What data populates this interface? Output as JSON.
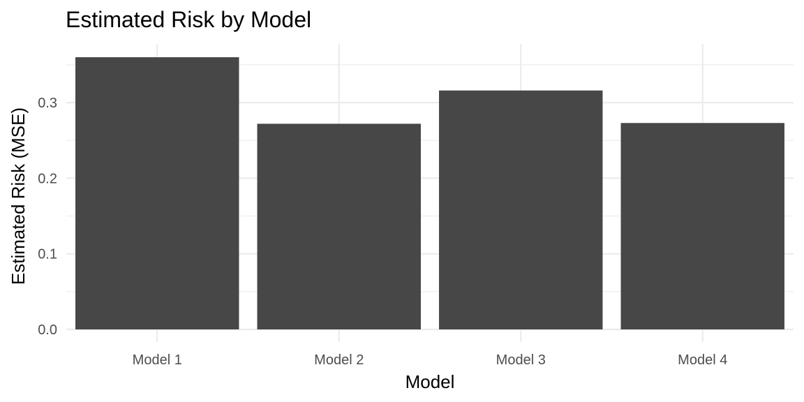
{
  "chart_data": {
    "type": "bar",
    "title": "Estimated Risk by Model",
    "xlabel": "Model",
    "ylabel": "Estimated Risk (MSE)",
    "categories": [
      "Model 1",
      "Model 2",
      "Model 3",
      "Model 4"
    ],
    "values": [
      0.36,
      0.272,
      0.316,
      0.273
    ],
    "ylim": [
      0,
      0.36
    ],
    "yticks": [
      "0.0",
      "0.1",
      "0.2",
      "0.3"
    ],
    "ytick_values": [
      0,
      0.1,
      0.2,
      0.3
    ],
    "grid": true,
    "bar_color": "#474747",
    "grid_color": "#ebebeb",
    "legend": "none"
  }
}
